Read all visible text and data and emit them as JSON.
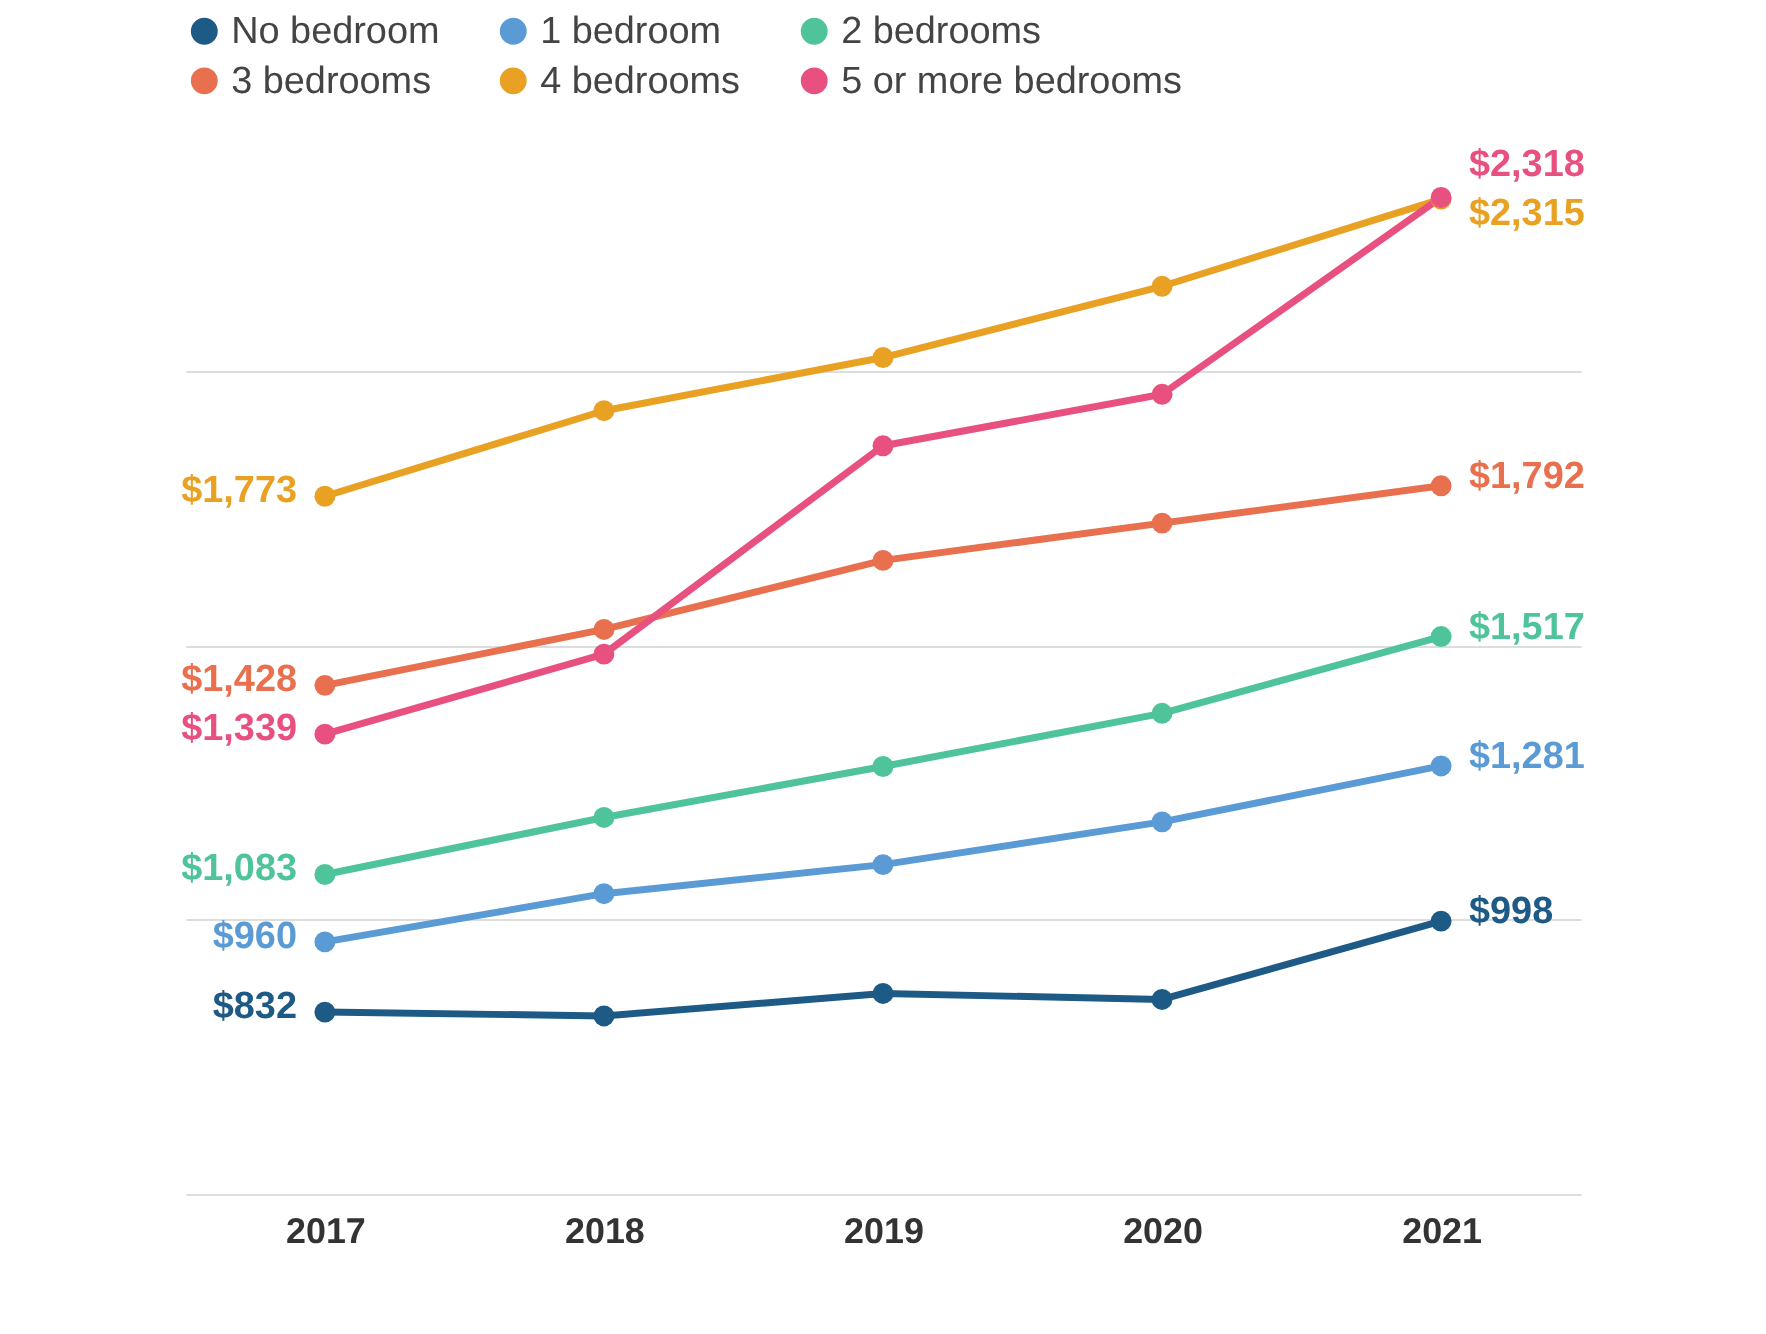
{
  "chart_data": {
    "type": "line",
    "categories": [
      "2017",
      "2018",
      "2019",
      "2020",
      "2021"
    ],
    "yticks": [
      {
        "value": 500,
        "label": null
      },
      {
        "value": 1000,
        "label": null
      },
      {
        "value": 1500,
        "label": null
      },
      {
        "value": 2000,
        "label": null
      }
    ],
    "grid": "y",
    "tick_labels": "x",
    "legend": "top",
    "marker": "circle",
    "line_style": "solid",
    "series": [
      {
        "name": "No bedroom",
        "color": "#1d5a86",
        "values": [
          832,
          825,
          866,
          855,
          998
        ],
        "value_labels": [
          "$832",
          null,
          null,
          null,
          "$998"
        ]
      },
      {
        "name": "1 bedroom",
        "color": "#5b9bd5",
        "values": [
          960,
          1048,
          1101,
          1179,
          1281
        ],
        "value_labels": [
          "$960",
          null,
          null,
          null,
          "$1,281"
        ]
      },
      {
        "name": "2 bedrooms",
        "color": "#4fc49a",
        "values": [
          1083,
          1187,
          1280,
          1377,
          1517
        ],
        "value_labels": [
          "$1,083",
          null,
          null,
          null,
          "$1,517"
        ]
      },
      {
        "name": "3 bedrooms",
        "color": "#e8704e",
        "values": [
          1428,
          1530,
          1656,
          1724,
          1792
        ],
        "value_labels": [
          "$1,428",
          null,
          null,
          null,
          "$1,792"
        ]
      },
      {
        "name": "4 bedrooms",
        "color": "#e8a122",
        "values": [
          1773,
          1929,
          2026,
          2156,
          2315
        ],
        "value_labels": [
          "$1,773",
          null,
          null,
          null,
          "$2,315"
        ]
      },
      {
        "name": "5 or more bedrooms",
        "color": "#e8517f",
        "values": [
          1339,
          1485,
          1865,
          1959,
          2318
        ],
        "value_labels": [
          "$1,339",
          null,
          null,
          null,
          "$2,318"
        ]
      }
    ]
  }
}
